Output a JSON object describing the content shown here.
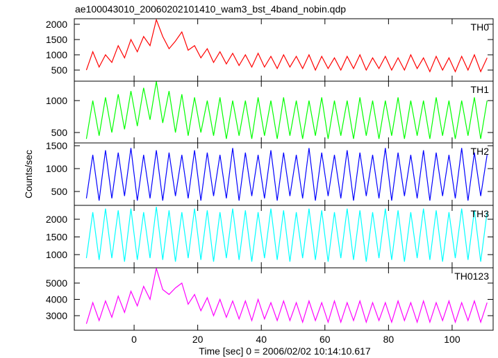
{
  "chart_data": [
    {
      "type": "line",
      "title": "ae100043010_20060202101410_wam3_bst_4band_nobin.qdp",
      "x": [
        -15,
        -13,
        -11,
        -9,
        -7,
        -5,
        -3,
        -1,
        1,
        3,
        5,
        7,
        9,
        11,
        13,
        15,
        17,
        19,
        21,
        23,
        25,
        27,
        29,
        31,
        33,
        35,
        37,
        39,
        41,
        43,
        45,
        47,
        49,
        51,
        53,
        55,
        57,
        59,
        61,
        63,
        65,
        67,
        69,
        71,
        73,
        75,
        77,
        79,
        81,
        83,
        85,
        87,
        89,
        91,
        93,
        95,
        97,
        99,
        101,
        103,
        105,
        107,
        109,
        111
      ],
      "series": [
        {
          "name": "TH0",
          "color": "#ff0000",
          "values": [
            500,
            1100,
            600,
            1000,
            750,
            1300,
            900,
            1500,
            1100,
            1600,
            1300,
            2150,
            1600,
            1200,
            1450,
            1750,
            1150,
            1300,
            900,
            1200,
            750,
            1100,
            700,
            1050,
            650,
            1000,
            600,
            1050,
            600,
            950,
            550,
            1000,
            600,
            950,
            550,
            1000,
            500,
            950,
            550,
            900,
            500,
            950,
            550,
            1000,
            500,
            900,
            550,
            950,
            500,
            900,
            500,
            1000,
            550,
            900,
            450,
            950,
            500,
            900,
            450,
            950,
            500,
            1000,
            450,
            900
          ]
        }
      ],
      "xlim": [
        -18.8,
        112.9
      ],
      "xticks": [
        0,
        20,
        40,
        60,
        80,
        100
      ],
      "ylim": [
        136,
        2182
      ],
      "yticks": [
        500,
        1000,
        1500,
        2000
      ]
    },
    {
      "type": "line",
      "x": [
        -15,
        -13,
        -11,
        -9,
        -7,
        -5,
        -3,
        -1,
        1,
        3,
        5,
        7,
        9,
        11,
        13,
        15,
        17,
        19,
        21,
        23,
        25,
        27,
        29,
        31,
        33,
        35,
        37,
        39,
        41,
        43,
        45,
        47,
        49,
        51,
        53,
        55,
        57,
        59,
        61,
        63,
        65,
        67,
        69,
        71,
        73,
        75,
        77,
        79,
        81,
        83,
        85,
        87,
        89,
        91,
        93,
        95,
        97,
        99,
        101,
        103,
        105,
        107,
        109,
        111
      ],
      "series": [
        {
          "name": "TH1",
          "color": "#00ff00",
          "values": [
            400,
            1000,
            450,
            1050,
            500,
            1100,
            550,
            1150,
            600,
            1200,
            700,
            1300,
            650,
            1150,
            500,
            1100,
            450,
            1050,
            500,
            1000,
            450,
            1050,
            400,
            1000,
            450,
            1000,
            400,
            1050,
            450,
            1000,
            400,
            1050,
            450,
            1000,
            400,
            1000,
            450,
            1050,
            400,
            1000,
            450,
            1000,
            400,
            1050,
            450,
            1000,
            400,
            1000,
            450,
            1050,
            400,
            1000,
            450,
            1000,
            400,
            1050,
            450,
            1000,
            400,
            1000,
            450,
            1050,
            400,
            1000
          ]
        }
      ],
      "xlim": [
        -18.8,
        112.9
      ],
      "xticks": [
        0,
        20,
        40,
        60,
        80,
        100
      ],
      "ylim": [
        337,
        1304
      ],
      "yticks": [
        500,
        1000
      ]
    },
    {
      "type": "line",
      "y_label": "Counts/sec",
      "x": [
        -15,
        -13,
        -11,
        -9,
        -7,
        -5,
        -3,
        -1,
        1,
        3,
        5,
        7,
        9,
        11,
        13,
        15,
        17,
        19,
        21,
        23,
        25,
        27,
        29,
        31,
        33,
        35,
        37,
        39,
        41,
        43,
        45,
        47,
        49,
        51,
        53,
        55,
        57,
        59,
        61,
        63,
        65,
        67,
        69,
        71,
        73,
        75,
        77,
        79,
        81,
        83,
        85,
        87,
        89,
        91,
        93,
        95,
        97,
        99,
        101,
        103,
        105,
        107,
        109,
        111
      ],
      "series": [
        {
          "name": "TH2",
          "color": "#0000ff",
          "values": [
            350,
            1300,
            300,
            1400,
            350,
            1350,
            400,
            1450,
            300,
            1300,
            350,
            1400,
            300,
            1350,
            400,
            1300,
            350,
            1400,
            300,
            1350,
            400,
            1300,
            350,
            1450,
            300,
            1350,
            400,
            1300,
            350,
            1400,
            300,
            1350,
            400,
            1300,
            350,
            1450,
            300,
            1350,
            400,
            1300,
            350,
            1400,
            300,
            1350,
            400,
            1300,
            350,
            1450,
            300,
            1350,
            400,
            1300,
            350,
            1400,
            300,
            1350,
            400,
            1300,
            350,
            1450,
            300,
            1350,
            400,
            1300
          ]
        }
      ],
      "xlim": [
        -18.8,
        112.9
      ],
      "xticks": [
        0,
        20,
        40,
        60,
        80,
        100
      ],
      "ylim": [
        197,
        1561
      ],
      "yticks": [
        500,
        1000,
        1500
      ]
    },
    {
      "type": "line",
      "x": [
        -15,
        -13,
        -11,
        -9,
        -7,
        -5,
        -3,
        -1,
        1,
        3,
        5,
        7,
        9,
        11,
        13,
        15,
        17,
        19,
        21,
        23,
        25,
        27,
        29,
        31,
        33,
        35,
        37,
        39,
        41,
        43,
        45,
        47,
        49,
        51,
        53,
        55,
        57,
        59,
        61,
        63,
        65,
        67,
        69,
        71,
        73,
        75,
        77,
        79,
        81,
        83,
        85,
        87,
        89,
        91,
        93,
        95,
        97,
        99,
        101,
        103,
        105,
        107,
        109,
        111
      ],
      "series": [
        {
          "name": "TH3",
          "color": "#00ffff",
          "values": [
            900,
            2200,
            850,
            2300,
            900,
            2250,
            800,
            2300,
            850,
            2200,
            900,
            2350,
            850,
            2250,
            800,
            2200,
            900,
            2300,
            850,
            2250,
            800,
            2200,
            900,
            2300,
            850,
            2250,
            800,
            2200,
            900,
            2300,
            850,
            2250,
            800,
            2200,
            900,
            2300,
            850,
            2250,
            800,
            2200,
            900,
            2300,
            850,
            2250,
            800,
            2200,
            900,
            2300,
            850,
            2250,
            800,
            2200,
            900,
            2300,
            850,
            2250,
            800,
            2200,
            900,
            2300,
            850,
            2250,
            800,
            2200
          ]
        }
      ],
      "xlim": [
        -18.8,
        112.9
      ],
      "xticks": [
        0,
        20,
        40,
        60,
        80,
        100
      ],
      "ylim": [
        627,
        2392
      ],
      "yticks": [
        1000,
        1500,
        2000
      ]
    },
    {
      "type": "line",
      "x_label": "Time [sec] 0 = 2006/02/02 10:14:10.617",
      "x": [
        -15,
        -13,
        -11,
        -9,
        -7,
        -5,
        -3,
        -1,
        1,
        3,
        5,
        7,
        9,
        11,
        13,
        15,
        17,
        19,
        21,
        23,
        25,
        27,
        29,
        31,
        33,
        35,
        37,
        39,
        41,
        43,
        45,
        47,
        49,
        51,
        53,
        55,
        57,
        59,
        61,
        63,
        65,
        67,
        69,
        71,
        73,
        75,
        77,
        79,
        81,
        83,
        85,
        87,
        89,
        91,
        93,
        95,
        97,
        99,
        101,
        103,
        105,
        107,
        109,
        111
      ],
      "series": [
        {
          "name": "TH0123",
          "color": "#ff00ff",
          "values": [
            2500,
            3800,
            2700,
            3900,
            2900,
            4200,
            3200,
            4500,
            3600,
            4800,
            4000,
            5900,
            4600,
            4300,
            4700,
            5000,
            3700,
            4300,
            3300,
            4100,
            3000,
            4000,
            2900,
            3900,
            2800,
            3900,
            2700,
            4000,
            2800,
            3800,
            2700,
            3900,
            2700,
            3800,
            2600,
            3900,
            2700,
            3800,
            2600,
            3900,
            2600,
            3800,
            2700,
            3900,
            2600,
            3800,
            2700,
            3800,
            2600,
            3900,
            2700,
            3800,
            2600,
            3900,
            2600,
            3800,
            2700,
            3900,
            2600,
            3800,
            2700,
            3900,
            2600,
            3800
          ]
        }
      ],
      "xlim": [
        -18.8,
        112.9
      ],
      "xticks": [
        0,
        20,
        40,
        60,
        80,
        100
      ],
      "ylim": [
        2106,
        5936
      ],
      "yticks": [
        3000,
        4000,
        5000
      ]
    }
  ]
}
